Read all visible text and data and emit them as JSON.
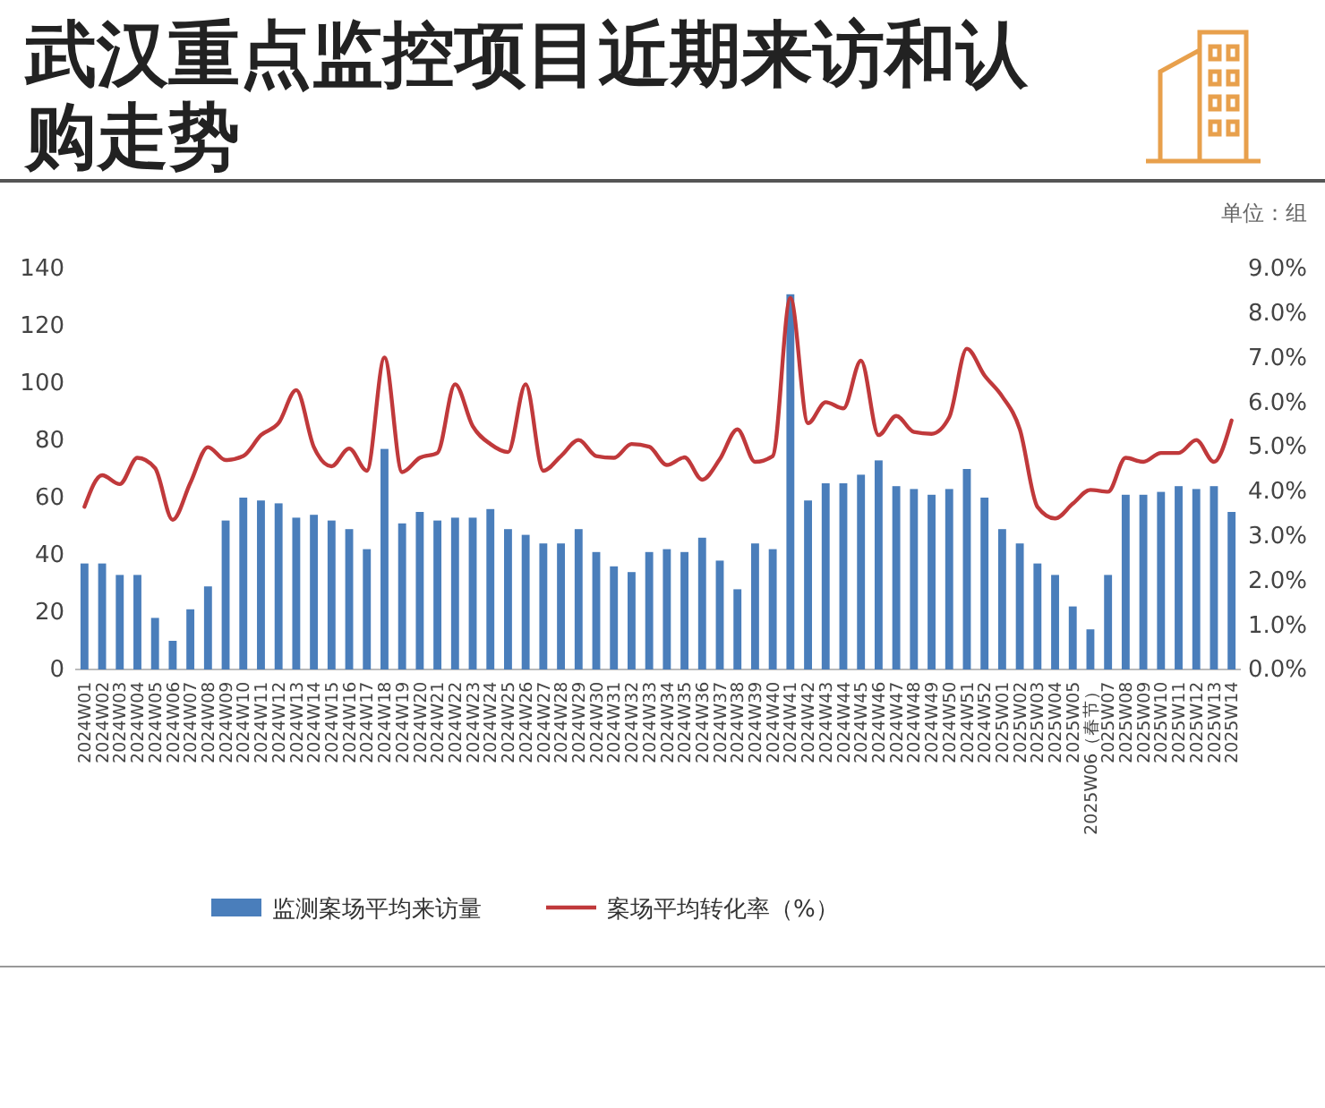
{
  "chart_data": {
    "type": "bar",
    "title": "武汉重点监控项目近期来访和认购走势",
    "subtitle": "单位：组",
    "categories": [
      "2024W01",
      "2024W02",
      "2024W03",
      "2024W04",
      "2024W05",
      "2024W06",
      "2024W07",
      "2024W08",
      "2024W09",
      "2024W10",
      "2024W11",
      "2024W12",
      "2024W13",
      "2024W14",
      "2024W15",
      "2024W16",
      "2024W17",
      "2024W18",
      "2024W19",
      "2024W20",
      "2024W21",
      "2024W22",
      "2024W23",
      "2024W24",
      "2024W25",
      "2024W26",
      "2024W27",
      "2024W28",
      "2024W29",
      "2024W30",
      "2024W31",
      "2024W32",
      "2024W33",
      "2024W34",
      "2024W35",
      "2024W36",
      "2024W37",
      "2024W38",
      "2024W39",
      "2024W40",
      "2024W41",
      "2024W42",
      "2024W43",
      "2024W44",
      "2024W45",
      "2024W46",
      "2024W47",
      "2024W48",
      "2024W49",
      "2024W50",
      "2024W51",
      "2024W52",
      "2025W01",
      "2025W02",
      "2025W03",
      "2025W04",
      "2025W05",
      "2025W06（春节）",
      "2025W07",
      "2025W08",
      "2025W09",
      "2025W10",
      "2025W11",
      "2025W12",
      "2025W13",
      "2025W14"
    ],
    "series": [
      {
        "name": "监测案场平均来访量",
        "color": "#4a7ebb",
        "values": [
          37,
          37,
          33,
          33,
          18,
          10,
          21,
          29,
          52,
          60,
          59,
          58,
          53,
          54,
          52,
          49,
          42,
          77,
          51,
          55,
          52,
          53,
          53,
          56,
          49,
          47,
          44,
          44,
          49,
          41,
          36,
          34,
          41,
          42,
          41,
          46,
          38,
          28,
          44,
          42,
          131,
          59,
          65,
          65,
          68,
          73,
          64,
          63,
          61,
          63,
          70,
          60,
          49,
          44,
          37,
          33,
          22,
          14,
          33,
          61,
          61,
          62,
          64,
          63,
          64,
          55
        ]
      },
      {
        "name": "案场平均转化率（%）",
        "type": "line",
        "axis": "y2",
        "color": "#c0393b",
        "values": [
          3.65,
          4.36,
          4.16,
          4.75,
          4.52,
          3.36,
          4.19,
          4.99,
          4.7,
          4.79,
          5.26,
          5.53,
          6.27,
          4.99,
          4.56,
          4.96,
          4.46,
          7.0,
          4.43,
          4.75,
          4.86,
          6.4,
          5.46,
          5.06,
          4.88,
          6.4,
          4.46,
          4.79,
          5.15,
          4.79,
          4.75,
          5.06,
          5.0,
          4.59,
          4.76,
          4.26,
          4.72,
          5.39,
          4.66,
          4.79,
          8.34,
          5.53,
          6.0,
          5.86,
          6.93,
          5.26,
          5.69,
          5.33,
          5.29,
          5.66,
          7.2,
          6.6,
          6.13,
          5.39,
          3.65,
          3.39,
          3.72,
          4.03,
          3.99,
          4.75,
          4.66,
          4.86,
          4.86,
          5.15,
          4.66,
          5.59
        ]
      }
    ],
    "ylim": [
      0,
      140
    ],
    "yticks": [
      0,
      20,
      40,
      60,
      80,
      100,
      120,
      140
    ],
    "y2lim": [
      0,
      9
    ],
    "y2ticks": [
      {
        "value": 0,
        "label": "0.0%"
      },
      {
        "value": 1,
        "label": "1.0%"
      },
      {
        "value": 2,
        "label": "2.0%"
      },
      {
        "value": 3,
        "label": "3.0%"
      },
      {
        "value": 4,
        "label": "4.0%"
      },
      {
        "value": 5,
        "label": "5.0%"
      },
      {
        "value": 6,
        "label": "6.0%"
      },
      {
        "value": 7,
        "label": "7.0%"
      },
      {
        "value": 8,
        "label": "8.0%"
      },
      {
        "value": 9,
        "label": "9.0%"
      }
    ],
    "grid": false,
    "legend": "bottom"
  }
}
